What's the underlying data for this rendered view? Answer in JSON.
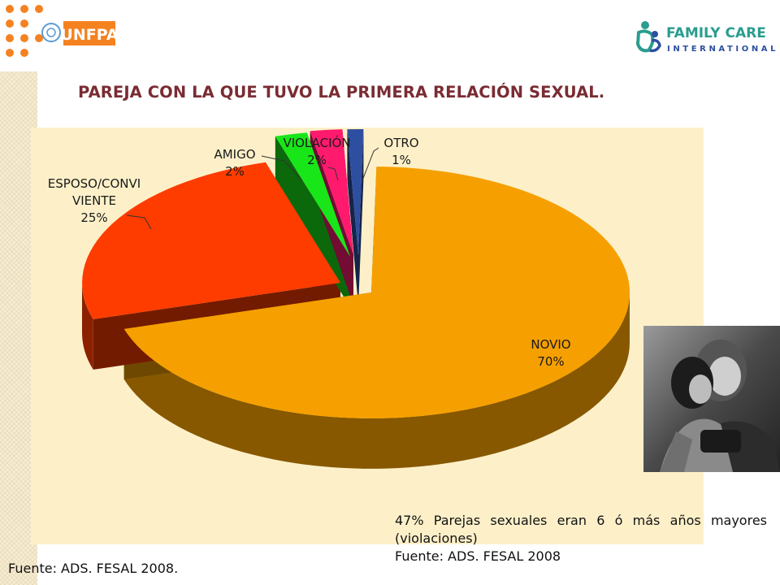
{
  "header": {
    "left_logo_text": "UNFPA",
    "right_logo_line1": "FAMILY CARE",
    "right_logo_line2": "INTERNATIONAL"
  },
  "slide": {
    "title": "PAREJA CON LA QUE TUVO LA PRIMERA RELACIÓN SEXUAL.",
    "note": "47% Parejas sexuales eran 6 ó más años mayores (violaciones)",
    "note_source": "Fuente: ADS. FESAL 2008",
    "footer_source": "Fuente: ADS. FESAL 2008."
  },
  "chart_data": {
    "type": "pie",
    "title": "",
    "style": "3d-exploded",
    "slices": [
      {
        "label": "NOVIO",
        "percent_label": "70%",
        "value": 70,
        "color": "#f5a000"
      },
      {
        "label": "ESPOSO/CONVI VIENTE",
        "label_line1": "ESPOSO/CONVI",
        "label_line2": "VIENTE",
        "percent_label": "25%",
        "value": 25,
        "color": "#ff3c00"
      },
      {
        "label": "AMIGO",
        "percent_label": "2%",
        "value": 2,
        "color": "#19e619"
      },
      {
        "label": "VIOLACIÓN",
        "percent_label": "2%",
        "value": 2,
        "color": "#ff1a6e"
      },
      {
        "label": "OTRO",
        "percent_label": "1%",
        "value": 1,
        "color": "#2e4fa0"
      }
    ],
    "legend": "none",
    "data_labels": "outside-with-leader-lines"
  }
}
